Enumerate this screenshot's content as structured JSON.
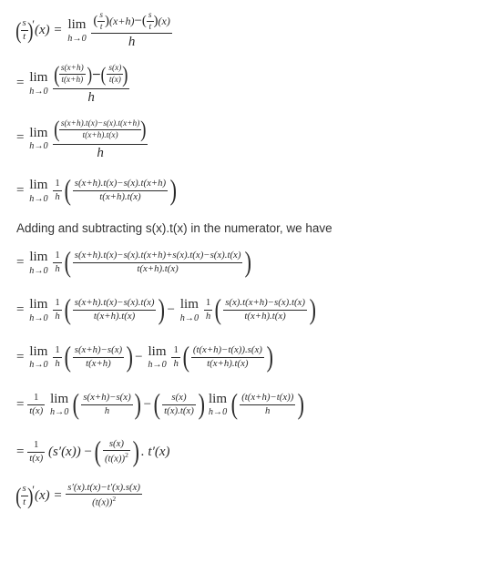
{
  "colors": {
    "text": "#2a2a2a",
    "textLine": "#333333",
    "background": "#ffffff",
    "ruleColor": "#2a2a2a"
  },
  "typography": {
    "mathFont": "Georgia, 'Times New Roman', serif",
    "textFont": "Arial, sans-serif",
    "mathSize": 15,
    "textSize": 13.5
  },
  "lines": {
    "l1": {
      "lhs_open": "(",
      "lhs_frac_num": "s",
      "lhs_frac_den": "t",
      "lhs_close": ")",
      "lhs_prime": "′",
      "lhs_arg": "(x) = ",
      "lim": "lim",
      "lim_sub": "h→0",
      "rhs_num_a_open": "(",
      "rhs_num_a_num": "s",
      "rhs_num_a_den": "t",
      "rhs_num_a_close": ")",
      "rhs_num_a_arg": "(x+h)",
      "rhs_num_minus": "−",
      "rhs_num_b_open": "(",
      "rhs_num_b_num": "s",
      "rhs_num_b_den": "t",
      "rhs_num_b_close": ")",
      "rhs_num_b_arg": "(x)",
      "rhs_den": "h"
    },
    "l2": {
      "eq": "= ",
      "lim": "lim",
      "lim_sub": "h→0",
      "outer_open": "(",
      "a_num": "s(x+h)",
      "a_den": "t(x+h)",
      "mid": ")−(",
      "b_num": "s(x)",
      "b_den": "t(x)",
      "outer_close": ")",
      "den": "h"
    },
    "l3": {
      "eq": "= ",
      "lim": "lim",
      "lim_sub": "h→0",
      "inner_open": "(",
      "inner_num": "s(x+h).t(x)−s(x).t(x+h)",
      "inner_den": "t(x+h).t(x)",
      "inner_close": ")",
      "den": "h"
    },
    "l4": {
      "eq": "= ",
      "lim": "lim",
      "lim_sub": "h→0",
      "onehnum": "1",
      "onehden": "h",
      "open": "(",
      "num": "s(x+h).t(x)−s(x).t(x+h)",
      "den": "t(x+h).t(x)",
      "close": ")"
    },
    "text": "Adding and subtracting s(x).t(x) in the numerator, we have",
    "l5": {
      "eq": "= ",
      "lim": "lim",
      "lim_sub": "h→0",
      "onehnum": "1",
      "onehden": "h",
      "open": "(",
      "num": "s(x+h).t(x)−s(x).t(x+h)+s(x).t(x)−s(x).t(x)",
      "den": "t(x+h).t(x)",
      "close": ")"
    },
    "l6": {
      "eq": "= ",
      "lim": "lim",
      "lim_sub": "h→0",
      "onehnum": "1",
      "onehden": "h",
      "open1": "(",
      "num1": "s(x+h).t(x)−s(x).t(x)",
      "den1": "t(x+h).t(x)",
      "close1": ")",
      "minus": " − ",
      "lim2": "lim",
      "lim2_sub": "h→0",
      "oneh2num": "1",
      "oneh2den": "h",
      "open2": "(",
      "num2": "s(x).t(x+h)−s(x).t(x)",
      "den2": "t(x+h).t(x)",
      "close2": ")"
    },
    "l7": {
      "eq": "= ",
      "lim": "lim",
      "lim_sub": "h→0",
      "onehnum": "1",
      "onehden": "h",
      "open1": "(",
      "num1": "s(x+h)−s(x)",
      "den1": "t(x+h)",
      "close1": ")",
      "minus": " − ",
      "lim2": "lim",
      "lim2_sub": "h→0",
      "oneh2num": "1",
      "oneh2den": "h",
      "open2": "(",
      "num2": "(t(x+h)−t(x)).s(x)",
      "den2": "t(x+h).t(x)",
      "close2": ")"
    },
    "l8": {
      "eq": "= ",
      "frac1num": "1",
      "frac1den": "t(x)",
      "lim": "lim",
      "lim_sub": "h→0",
      "open1": "(",
      "num1": "s(x+h)−s(x)",
      "den1": "h",
      "close1": ")",
      "minus": " − ",
      "open2a": "(",
      "frac2num": "s(x)",
      "frac2den": "t(x).t(x)",
      "close2a": ")",
      "lim2": "lim",
      "lim2_sub": "h→0",
      "open2": "(",
      "num2": "(t(x+h)−t(x))",
      "den2": "h",
      "close2": ")"
    },
    "l9": {
      "eq": "= ",
      "frac1num": "1",
      "frac1den": "t(x)",
      "sprime": "(s′(x))",
      "minus": " − ",
      "open": "(",
      "frac2num": "s(x)",
      "frac2den_base": "(t(x))",
      "frac2den_exp": "2",
      "close": ")",
      "tail": " . t′(x)"
    },
    "l10": {
      "lhs_open": "(",
      "lhs_num": "s",
      "lhs_den": "t",
      "lhs_close": ")",
      "lhs_prime": "′",
      "lhs_arg": "(x) = ",
      "num": "s′(x).t(x)−t′(x).s(x)",
      "den_base": "(t(x))",
      "den_exp": "2"
    }
  }
}
